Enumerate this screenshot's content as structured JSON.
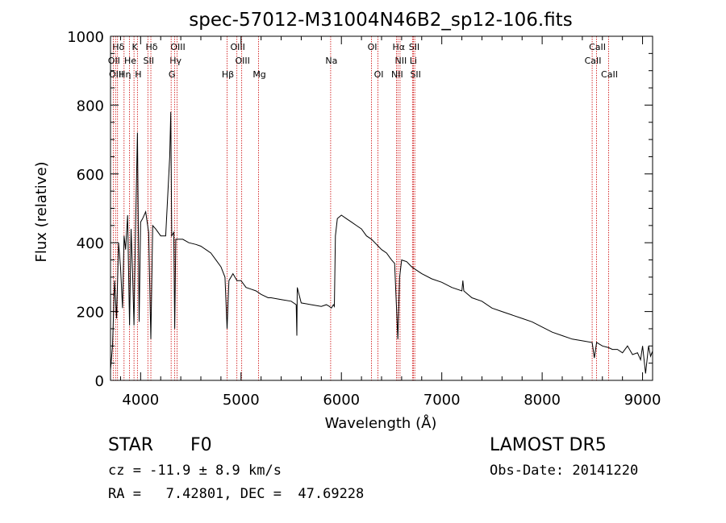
{
  "chart_data": {
    "type": "line",
    "title": "spec-57012-M31004N46B2_sp12-106.fits",
    "xlabel": "Wavelength (Å)",
    "ylabel": "Flux (relative)",
    "xlim": [
      3700,
      9100
    ],
    "ylim": [
      0,
      1000
    ],
    "xticks": [
      4000,
      5000,
      6000,
      7000,
      8000,
      9000
    ],
    "yticks": [
      0,
      200,
      400,
      600,
      800,
      1000
    ],
    "grid": false,
    "series": [
      {
        "x": [
          3700,
          3720,
          3740,
          3760,
          3780,
          3800,
          3820,
          3835,
          3850,
          3870,
          3890,
          3905,
          3920,
          3934,
          3950,
          3968,
          3985,
          4000,
          4020,
          4050,
          4080,
          4102,
          4120,
          4150,
          4200,
          4250,
          4290,
          4300,
          4310,
          4330,
          4340,
          4350,
          4380,
          4420,
          4480,
          4550,
          4600,
          4650,
          4700,
          4750,
          4800,
          4840,
          4861,
          4880,
          4920,
          4960,
          5000,
          5050,
          5100,
          5150,
          5200,
          5270,
          5300,
          5400,
          5500,
          5550,
          5556,
          5560,
          5600,
          5700,
          5800,
          5850,
          5880,
          5900,
          5920,
          5930,
          5940,
          5960,
          6000,
          6050,
          6100,
          6150,
          6200,
          6250,
          6300,
          6350,
          6400,
          6450,
          6500,
          6530,
          6562,
          6580,
          6600,
          6650,
          6700,
          6750,
          6800,
          6900,
          7000,
          7100,
          7200,
          7210,
          7220,
          7300,
          7400,
          7500,
          7600,
          7700,
          7800,
          7900,
          8000,
          8100,
          8200,
          8300,
          8400,
          8498,
          8520,
          8542,
          8600,
          8662,
          8700,
          8750,
          8800,
          8850,
          8900,
          8950,
          8980,
          9000,
          9030,
          9060,
          9080,
          9100
        ],
        "y": [
          30,
          100,
          290,
          180,
          400,
          330,
          210,
          420,
          380,
          480,
          160,
          440,
          310,
          160,
          450,
          720,
          170,
          460,
          470,
          490,
          430,
          120,
          450,
          440,
          420,
          420,
          650,
          780,
          420,
          430,
          150,
          410,
          410,
          410,
          400,
          395,
          390,
          380,
          370,
          350,
          330,
          300,
          150,
          290,
          310,
          290,
          290,
          270,
          265,
          260,
          250,
          240,
          240,
          235,
          230,
          220,
          130,
          270,
          225,
          220,
          215,
          220,
          215,
          210,
          220,
          215,
          420,
          470,
          480,
          470,
          460,
          450,
          440,
          420,
          410,
          395,
          380,
          370,
          350,
          340,
          120,
          300,
          350,
          345,
          330,
          320,
          310,
          295,
          285,
          270,
          260,
          290,
          260,
          240,
          230,
          210,
          200,
          190,
          180,
          170,
          155,
          140,
          130,
          120,
          115,
          110,
          65,
          110,
          100,
          95,
          90,
          90,
          80,
          100,
          75,
          80,
          60,
          100,
          20,
          100,
          70,
          85
        ]
      }
    ],
    "lines": [
      {
        "label": "Hδ",
        "x": 3770,
        "row": 1
      },
      {
        "label": "K",
        "x": 3934,
        "row": 1
      },
      {
        "label": "Hδ",
        "x": 4102,
        "row": 1
      },
      {
        "label": "OIII",
        "x": 4363,
        "row": 1
      },
      {
        "label": "OIII",
        "x": 4959,
        "row": 1
      },
      {
        "label": "OI",
        "x": 6300,
        "row": 1
      },
      {
        "label": "Hα",
        "x": 6563,
        "row": 1
      },
      {
        "label": "SII",
        "x": 6717,
        "row": 1
      },
      {
        "label": "CaII",
        "x": 8542,
        "row": 1
      },
      {
        "label": "OII",
        "x": 3727,
        "row": 2
      },
      {
        "label": "He",
        "x": 3889,
        "row": 2
      },
      {
        "label": "SII",
        "x": 4072,
        "row": 2
      },
      {
        "label": "Hγ",
        "x": 4340,
        "row": 2
      },
      {
        "label": "OIII",
        "x": 5007,
        "row": 2
      },
      {
        "label": "Na",
        "x": 5893,
        "row": 2
      },
      {
        "label": "NII",
        "x": 6584,
        "row": 2
      },
      {
        "label": "Li",
        "x": 6708,
        "row": 2
      },
      {
        "label": "CaII",
        "x": 8498,
        "row": 2
      },
      {
        "label": "OIII",
        "x": 3750,
        "row": 3
      },
      {
        "label": "Hη",
        "x": 3835,
        "row": 3
      },
      {
        "label": "H",
        "x": 3968,
        "row": 3
      },
      {
        "label": "G",
        "x": 4304,
        "row": 3
      },
      {
        "label": "Hβ",
        "x": 4861,
        "row": 3
      },
      {
        "label": "Mg",
        "x": 5175,
        "row": 3
      },
      {
        "label": "OI",
        "x": 6364,
        "row": 3
      },
      {
        "label": "NII",
        "x": 6548,
        "row": 3
      },
      {
        "label": "SII",
        "x": 6731,
        "row": 3
      },
      {
        "label": "CaII",
        "x": 8662,
        "row": 3
      }
    ],
    "colors": {
      "spectrum": "#000000",
      "lines": "#cc0000",
      "axes": "#000000"
    }
  },
  "info": {
    "object_class": "STAR",
    "subclass": "F0",
    "survey": "LAMOST DR5",
    "cz_line": "cz = -11.9 ± 8.9 km/s",
    "obs_date_line": "Obs-Date: 20141220",
    "radec_line": "RA =   7.42801, DEC =  47.69228"
  }
}
